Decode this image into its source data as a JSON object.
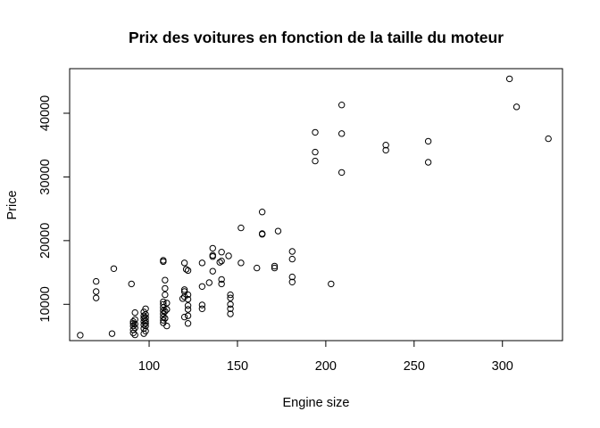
{
  "chart_data": {
    "type": "scatter",
    "title": "Prix des voitures en fonction de la taille du moteur",
    "xlabel": "Engine size",
    "ylabel": "Price",
    "xlim": [
      55,
      334
    ],
    "ylim": [
      4300,
      47000
    ],
    "xticks": [
      100,
      150,
      200,
      250,
      300
    ],
    "yticks": [
      10000,
      20000,
      30000,
      40000
    ],
    "grid": false,
    "legend": "none",
    "point_color": "#000000",
    "points": [
      [
        61,
        5150
      ],
      [
        70,
        13600
      ],
      [
        70,
        12000
      ],
      [
        70,
        11000
      ],
      [
        79,
        5400
      ],
      [
        80,
        15600
      ],
      [
        90,
        13200
      ],
      [
        91,
        5500
      ],
      [
        91,
        6000
      ],
      [
        91,
        6600
      ],
      [
        91,
        7000
      ],
      [
        91,
        7300
      ],
      [
        92,
        5200
      ],
      [
        92,
        6300
      ],
      [
        92,
        6900
      ],
      [
        92,
        7600
      ],
      [
        92,
        8700
      ],
      [
        97,
        5400
      ],
      [
        97,
        6200
      ],
      [
        97,
        6800
      ],
      [
        97,
        7300
      ],
      [
        97,
        7800
      ],
      [
        97,
        8200
      ],
      [
        97,
        8800
      ],
      [
        98,
        5800
      ],
      [
        98,
        6600
      ],
      [
        98,
        7000
      ],
      [
        98,
        7400
      ],
      [
        98,
        7900
      ],
      [
        98,
        8400
      ],
      [
        98,
        9300
      ],
      [
        108,
        7100
      ],
      [
        108,
        7500
      ],
      [
        108,
        8000
      ],
      [
        108,
        8500
      ],
      [
        108,
        9000
      ],
      [
        108,
        9500
      ],
      [
        108,
        10000
      ],
      [
        108,
        10400
      ],
      [
        108,
        16700
      ],
      [
        108,
        16900
      ],
      [
        109,
        7800
      ],
      [
        109,
        8900
      ],
      [
        109,
        11500
      ],
      [
        109,
        12500
      ],
      [
        109,
        13800
      ],
      [
        110,
        6600
      ],
      [
        110,
        9200
      ],
      [
        110,
        10200
      ],
      [
        119,
        10900
      ],
      [
        120,
        8000
      ],
      [
        120,
        11200
      ],
      [
        120,
        12000
      ],
      [
        120,
        12300
      ],
      [
        120,
        16500
      ],
      [
        121,
        15500
      ],
      [
        122,
        7000
      ],
      [
        122,
        8200
      ],
      [
        122,
        9200
      ],
      [
        122,
        9800
      ],
      [
        122,
        10800
      ],
      [
        122,
        11500
      ],
      [
        122,
        15300
      ],
      [
        130,
        9300
      ],
      [
        130,
        9900
      ],
      [
        130,
        12800
      ],
      [
        130,
        16500
      ],
      [
        134,
        13400
      ],
      [
        136,
        15200
      ],
      [
        136,
        17700
      ],
      [
        136,
        17500
      ],
      [
        136,
        18800
      ],
      [
        140,
        16600
      ],
      [
        141,
        13200
      ],
      [
        141,
        13900
      ],
      [
        141,
        16800
      ],
      [
        141,
        18200
      ],
      [
        145,
        17600
      ],
      [
        146,
        8500
      ],
      [
        146,
        9300
      ],
      [
        146,
        10000
      ],
      [
        146,
        11000
      ],
      [
        146,
        11500
      ],
      [
        152,
        16500
      ],
      [
        152,
        22000
      ],
      [
        161,
        15700
      ],
      [
        164,
        21000
      ],
      [
        164,
        21100
      ],
      [
        164,
        24500
      ],
      [
        171,
        15700
      ],
      [
        171,
        16000
      ],
      [
        173,
        21500
      ],
      [
        181,
        13500
      ],
      [
        181,
        14300
      ],
      [
        181,
        17100
      ],
      [
        181,
        18300
      ],
      [
        194,
        32500
      ],
      [
        194,
        33900
      ],
      [
        194,
        37000
      ],
      [
        203,
        13200
      ],
      [
        209,
        30700
      ],
      [
        209,
        36800
      ],
      [
        209,
        41300
      ],
      [
        234,
        34200
      ],
      [
        234,
        35000
      ],
      [
        258,
        32300
      ],
      [
        258,
        35600
      ],
      [
        304,
        45400
      ],
      [
        308,
        41000
      ],
      [
        326,
        36000
      ]
    ]
  }
}
